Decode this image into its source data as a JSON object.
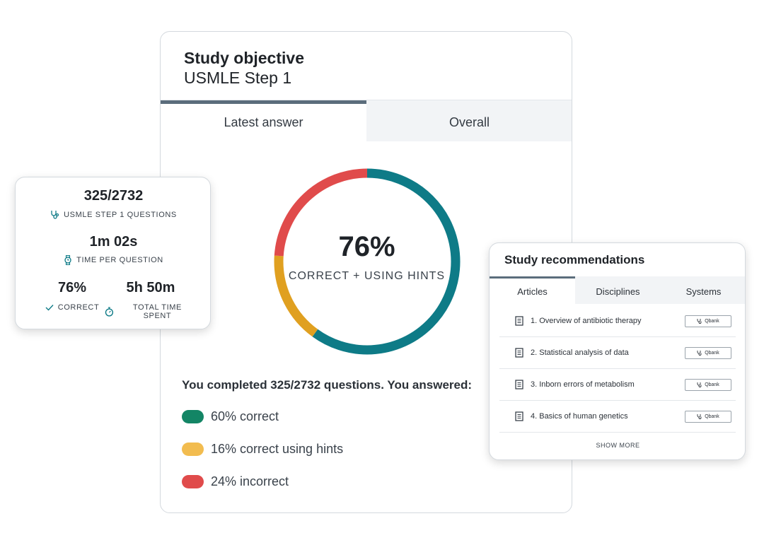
{
  "objective": {
    "title": "Study objective",
    "subtitle": "USMLE Step 1"
  },
  "tabs": {
    "latest": "Latest answer",
    "overall": "Overall"
  },
  "donut": {
    "percent": "76%",
    "caption": "CORRECT + USING HINTS",
    "segments": [
      {
        "label": "correct",
        "value": 60,
        "color": "#0e7b87"
      },
      {
        "label": "correct using hints",
        "value": 16,
        "color": "#e0a020"
      },
      {
        "label": "incorrect",
        "value": 24,
        "color": "#e04b4b"
      }
    ]
  },
  "summary": "You completed 325/2732 questions. You answered:",
  "legend": [
    {
      "text": "60% correct",
      "color": "#138565"
    },
    {
      "text": "16% correct using hints",
      "color": "#f2bc4f"
    },
    {
      "text": "24% incorrect",
      "color": "#e04b4b"
    }
  ],
  "stats": {
    "questions": {
      "value": "325/2732",
      "label": "USMLE STEP 1 QUESTIONS",
      "icon": "stethoscope-icon"
    },
    "time_per_question": {
      "value": "1m 02s",
      "label": "TIME PER QUESTION",
      "icon": "watch-icon"
    },
    "correct": {
      "value": "76%",
      "label": "CORRECT",
      "icon": "check-icon"
    },
    "total_time": {
      "value": "5h 50m",
      "label": "TOTAL TIME SPENT",
      "icon": "stopwatch-icon"
    },
    "accent": "#0e7b87"
  },
  "recommendations": {
    "title": "Study recommendations",
    "tabs": [
      "Articles",
      "Disciplines",
      "Systems"
    ],
    "items": [
      {
        "text": "1. Overview of antibiotic therapy",
        "button": "Qbank"
      },
      {
        "text": "2. Statistical analysis of data",
        "button": "Qbank"
      },
      {
        "text": "3. Inborn errors of metabolism",
        "button": "Qbank"
      },
      {
        "text": "4. Basics of human genetics",
        "button": "Qbank"
      }
    ],
    "show_more": "SHOW MORE"
  }
}
